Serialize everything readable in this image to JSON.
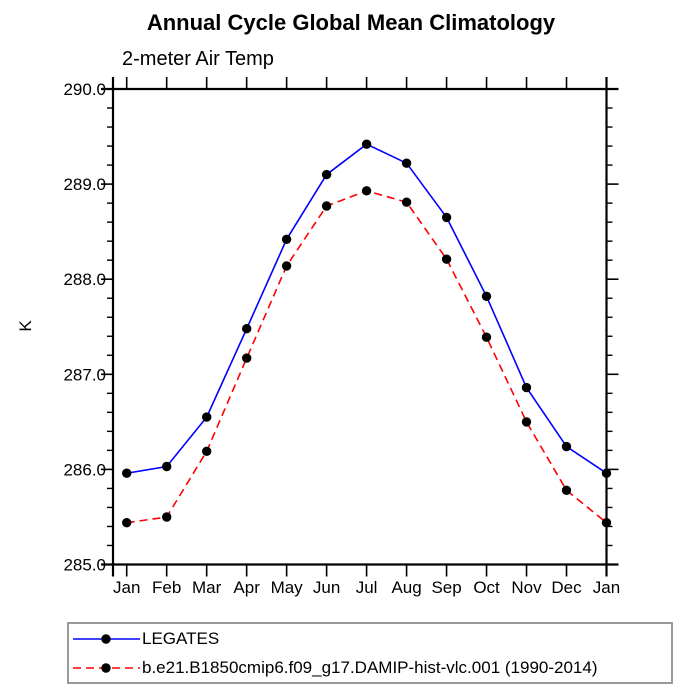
{
  "chart_data": {
    "type": "line",
    "title": "Annual Cycle Global Mean Climatology",
    "subtitle": "2-meter Air Temp",
    "xlabel": "",
    "ylabel": "K",
    "categories": [
      "Jan",
      "Feb",
      "Mar",
      "Apr",
      "May",
      "Jun",
      "Jul",
      "Aug",
      "Sep",
      "Oct",
      "Nov",
      "Dec",
      "Jan"
    ],
    "ylim": [
      285.0,
      290.0
    ],
    "y_major_step": 1.0,
    "y_minor_step": 0.2,
    "y_tick_labels": [
      "285.0",
      "286.0",
      "287.0",
      "288.0",
      "289.0",
      "290.0"
    ],
    "grid": false,
    "legend_position": "bottom",
    "frame_color": "#000000",
    "marker": "filled-circle",
    "marker_color": "#000000",
    "series": [
      {
        "name": "LEGATES",
        "color": "#0000ff",
        "style": "solid",
        "values": [
          285.96,
          286.03,
          286.55,
          287.48,
          288.42,
          289.1,
          289.42,
          289.22,
          288.65,
          287.82,
          286.86,
          286.24,
          285.96
        ]
      },
      {
        "name": "b.e21.B1850cmip6.f09_g17.DAMIP-hist-vlc.001 (1990-2014)",
        "color": "#ff0000",
        "style": "dashed",
        "values": [
          285.44,
          285.5,
          286.19,
          287.17,
          288.14,
          288.77,
          288.93,
          288.81,
          288.21,
          287.39,
          286.5,
          285.78,
          285.44
        ]
      }
    ]
  }
}
